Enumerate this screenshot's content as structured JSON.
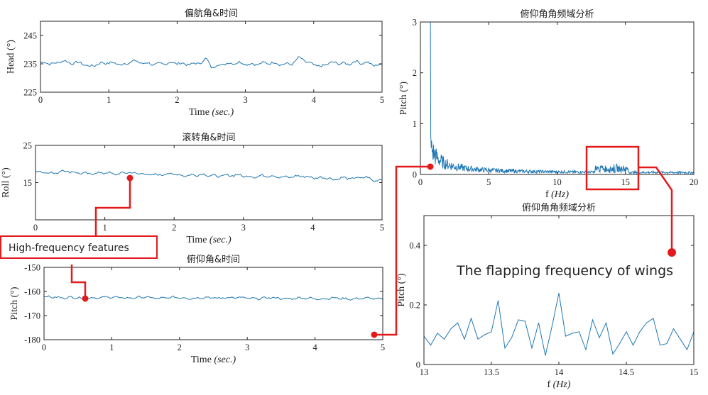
{
  "chart_data": [
    {
      "id": "yaw",
      "type": "line",
      "title": "偏航角&时间",
      "xlabel": "Time",
      "xlabel_unit": "(sec.)",
      "ylabel": "Head",
      "ylabel_unit": "(°)",
      "xlim": [
        0,
        5
      ],
      "ylim": [
        225,
        250
      ],
      "xticks": [
        "0",
        "1",
        "2",
        "3",
        "4",
        "5"
      ],
      "yticks": [
        "225",
        "235",
        "245"
      ],
      "ytick_values": [
        225,
        235,
        245
      ],
      "series": [
        {
          "color": "#1f77b4",
          "base": 235.1,
          "amp": 0.9,
          "bumps": [
            [
              0.32,
              1.3
            ],
            [
              0.72,
              -0.8
            ],
            [
              1.35,
              0.9
            ],
            [
              2.45,
              2.2
            ],
            [
              2.5,
              -2.4
            ],
            [
              3.8,
              1.8
            ],
            [
              4.1,
              -0.9
            ],
            [
              4.6,
              0.8
            ],
            [
              4.9,
              -0.6
            ]
          ]
        }
      ]
    },
    {
      "id": "roll",
      "type": "line",
      "title": "滚转角&时间",
      "xlabel": "Time",
      "xlabel_unit": "(sec.)",
      "ylabel": "Roll",
      "ylabel_unit": "(°)",
      "xlim": [
        0,
        5
      ],
      "ylim": [
        5,
        25
      ],
      "xticks": [
        "0",
        "1",
        "2",
        "3",
        "4",
        "5"
      ],
      "yticks": [
        "15",
        "25"
      ],
      "ytick_values": [
        15,
        25
      ],
      "series": [
        {
          "color": "#1f77b4",
          "base": 17.8,
          "slope": -0.33,
          "amp": 0.6,
          "bumps": [
            [
              0.4,
              0.6
            ],
            [
              1.3,
              0.5
            ],
            [
              4.3,
              -0.8
            ],
            [
              4.9,
              -0.7
            ]
          ]
        }
      ]
    },
    {
      "id": "pitch",
      "type": "line",
      "title": "俯仰角&时间",
      "xlabel": "Time",
      "xlabel_unit": "(sec.)",
      "ylabel": "Pitch",
      "ylabel_unit": "(°)",
      "xlim": [
        0,
        5
      ],
      "ylim": [
        -180,
        -150
      ],
      "xticks": [
        "0",
        "1",
        "2",
        "3",
        "4",
        "5"
      ],
      "yticks": [
        "-150",
        "-160",
        "-170",
        "-180"
      ],
      "ytick_values": [
        -150,
        -160,
        -170,
        -180
      ],
      "series": [
        {
          "color": "#1f77b4",
          "base": -162.4,
          "slope": -0.12,
          "amp": 0.7,
          "bumps": [
            [
              0.55,
              -0.5
            ],
            [
              2.7,
              0.4
            ]
          ]
        }
      ]
    },
    {
      "id": "pitch_fft",
      "type": "line",
      "title": "俯仰角角频域分析",
      "xlabel": "f",
      "xlabel_unit": "(Hz)",
      "ylabel": "Pitch",
      "ylabel_unit": "(°)",
      "xlim": [
        0,
        20
      ],
      "ylim": [
        0,
        3
      ],
      "xticks": [
        "0",
        "5",
        "10",
        "15",
        "20"
      ],
      "yticks": [
        "0",
        "1",
        "2",
        "3"
      ],
      "ytick_values": [
        0,
        1,
        2,
        3
      ],
      "series": [
        {
          "color": "#1f77b4",
          "spectrum": true
        }
      ]
    },
    {
      "id": "pitch_fft_zoom",
      "type": "line",
      "title": "俯仰角角频域分析",
      "xlabel": "f",
      "xlabel_unit": "(Hz)",
      "ylabel": "Pitch",
      "ylabel_unit": "(°)",
      "xlim": [
        13,
        15
      ],
      "ylim": [
        0,
        0.5
      ],
      "xticks": [
        "13",
        "13.5",
        "14",
        "14.5",
        "15"
      ],
      "yticks": [
        "0",
        "0.2",
        "0.4"
      ],
      "ytick_values": [
        0,
        0.2,
        0.4
      ],
      "series": [
        {
          "color": "#1f77b4",
          "x": [
            13.0,
            13.05,
            13.1,
            13.15,
            13.2,
            13.25,
            13.3,
            13.35,
            13.4,
            13.45,
            13.5,
            13.55,
            13.6,
            13.65,
            13.7,
            13.75,
            13.8,
            13.85,
            13.9,
            13.95,
            14.0,
            14.05,
            14.1,
            14.15,
            14.2,
            14.25,
            14.3,
            14.35,
            14.4,
            14.45,
            14.5,
            14.55,
            14.6,
            14.65,
            14.7,
            14.75,
            14.8,
            14.85,
            14.9,
            14.95,
            15.0
          ],
          "y": [
            0.095,
            0.065,
            0.105,
            0.085,
            0.12,
            0.14,
            0.085,
            0.155,
            0.085,
            0.1,
            0.11,
            0.215,
            0.055,
            0.09,
            0.15,
            0.145,
            0.055,
            0.14,
            0.03,
            0.13,
            0.24,
            0.095,
            0.105,
            0.11,
            0.05,
            0.15,
            0.09,
            0.14,
            0.035,
            0.07,
            0.11,
            0.065,
            0.11,
            0.14,
            0.155,
            0.065,
            0.07,
            0.12,
            0.085,
            0.05,
            0.11
          ]
        }
      ]
    }
  ],
  "annotations": {
    "high_freq_label": "High-frequency features",
    "flapping_label": "The flapping frequency of wings",
    "accent_color": "#e31a1c"
  }
}
